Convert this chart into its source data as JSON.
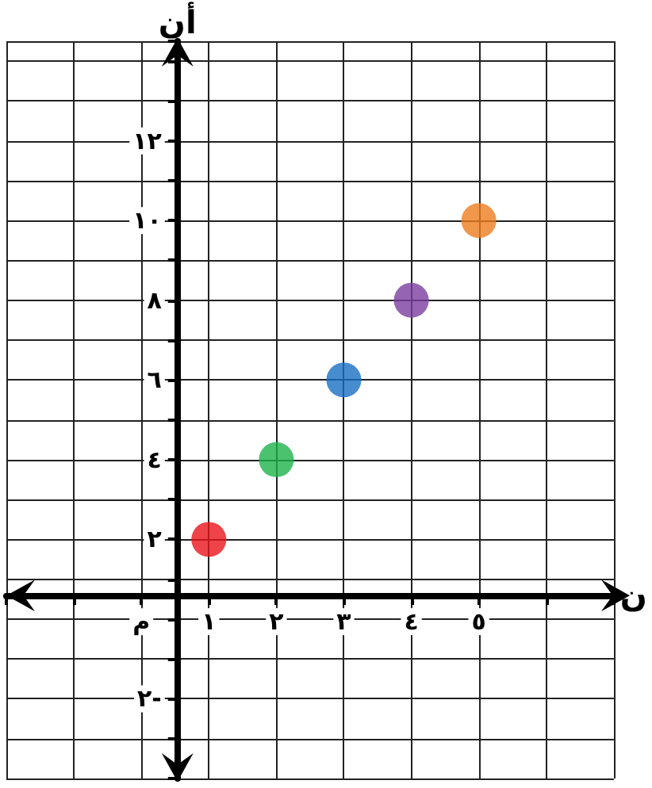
{
  "chart_data": {
    "type": "scatter",
    "xlabel": "ن",
    "ylabel": "أن",
    "x": [
      1,
      2,
      3,
      4,
      5
    ],
    "values": [
      2,
      4,
      6,
      8,
      10
    ],
    "colors": [
      "#e8141b",
      "#1db34a",
      "#1a6fc4",
      "#7b3fa0",
      "#ee7d1f"
    ],
    "marker": "circle",
    "grid": true,
    "xlim": [
      -2,
      7
    ],
    "ylim": [
      -4,
      14.5
    ],
    "xticks": [
      {
        "value": -2,
        "label": null
      },
      {
        "value": -1,
        "label": null
      },
      {
        "value": 0,
        "label": "م"
      },
      {
        "value": 1,
        "label": "١"
      },
      {
        "value": 2,
        "label": "٢"
      },
      {
        "value": 3,
        "label": "٣"
      },
      {
        "value": 4,
        "label": "٤"
      },
      {
        "value": 5,
        "label": "٥"
      },
      {
        "value": 6,
        "label": null
      },
      {
        "value": 7,
        "label": null
      }
    ],
    "yticks": [
      {
        "value": -4,
        "label": null
      },
      {
        "value": -3,
        "label": null
      },
      {
        "value": -2,
        "label": "٢-"
      },
      {
        "value": -1,
        "label": null
      },
      {
        "value": 0,
        "label": null
      },
      {
        "value": 1,
        "label": null
      },
      {
        "value": 2,
        "label": "٢"
      },
      {
        "value": 3,
        "label": null
      },
      {
        "value": 4,
        "label": "٤"
      },
      {
        "value": 5,
        "label": null
      },
      {
        "value": 6,
        "label": "٦"
      },
      {
        "value": 7,
        "label": null
      },
      {
        "value": 8,
        "label": "٨"
      },
      {
        "value": 9,
        "label": null
      },
      {
        "value": 10,
        "label": "١٠"
      },
      {
        "value": 11,
        "label": null
      },
      {
        "value": 12,
        "label": "١٢"
      },
      {
        "value": 13,
        "label": null
      },
      {
        "value": 14,
        "label": null
      }
    ]
  }
}
